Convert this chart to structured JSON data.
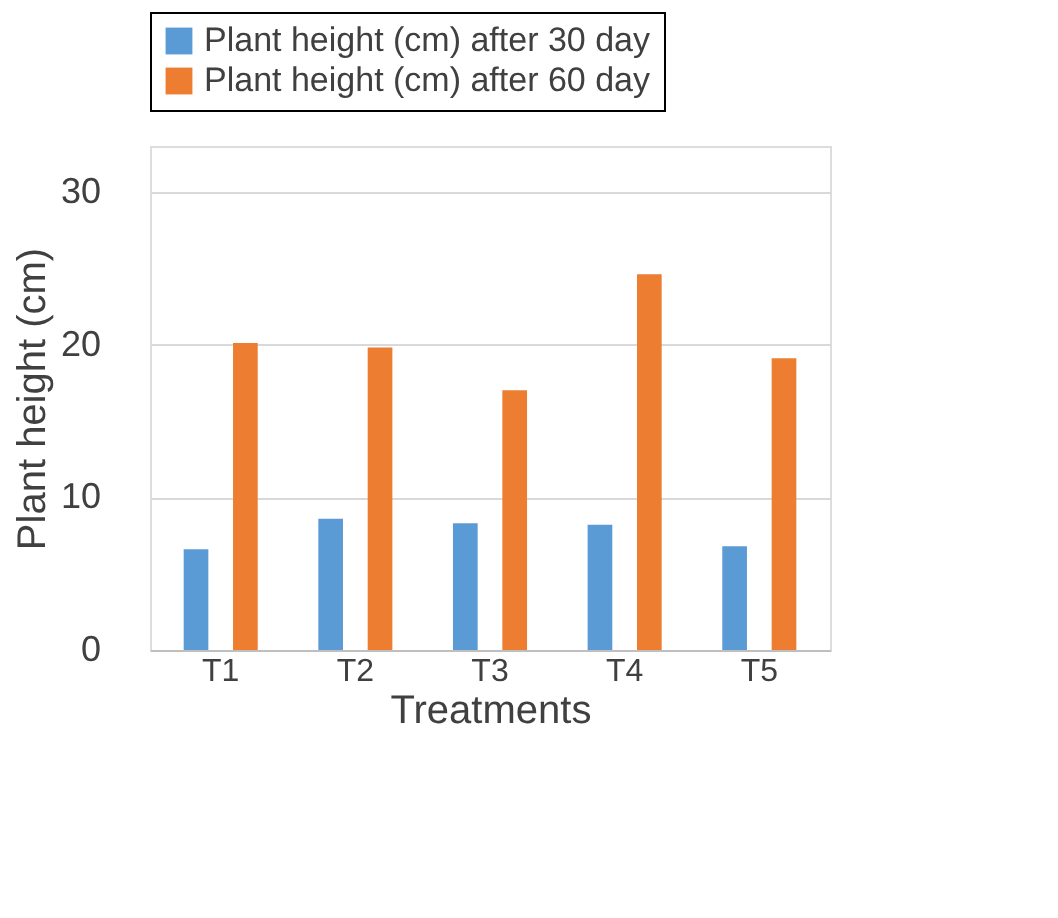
{
  "chart_data": {
    "type": "bar",
    "xlabel": "Treatments",
    "ylabel": "Plant height (cm)",
    "categories": [
      "T1",
      "T2",
      "T3",
      "T4",
      "T5"
    ],
    "series": [
      {
        "name": "Plant height (cm) after 30 day",
        "color": "#5b9bd5",
        "values": [
          6.6,
          8.6,
          8.3,
          8.2,
          6.8
        ]
      },
      {
        "name": "Plant height (cm) after 60 day",
        "color": "#ed7d31",
        "values": [
          20.1,
          19.8,
          17.0,
          24.6,
          19.1
        ]
      }
    ],
    "ylim": [
      0,
      33
    ],
    "yticks": [
      0,
      10,
      20,
      30
    ],
    "grid": "y",
    "legend": "top"
  }
}
